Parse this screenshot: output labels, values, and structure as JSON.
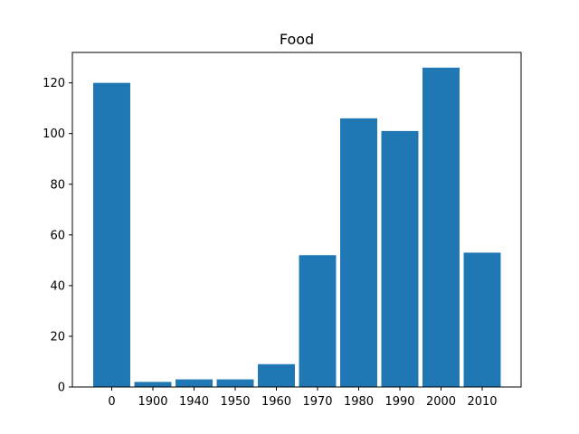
{
  "chart_data": {
    "type": "bar",
    "title": "Food",
    "xlabel": "",
    "ylabel": "",
    "categories": [
      "0",
      "1900",
      "1940",
      "1950",
      "1960",
      "1970",
      "1980",
      "1990",
      "2000",
      "2010"
    ],
    "values": [
      120,
      2,
      3,
      3,
      9,
      52,
      106,
      101,
      126,
      53
    ],
    "ylim": [
      0,
      132
    ],
    "yticks": [
      0,
      20,
      40,
      60,
      80,
      100,
      120
    ],
    "color": "#1f77b4",
    "grid": false,
    "legend": "none"
  }
}
